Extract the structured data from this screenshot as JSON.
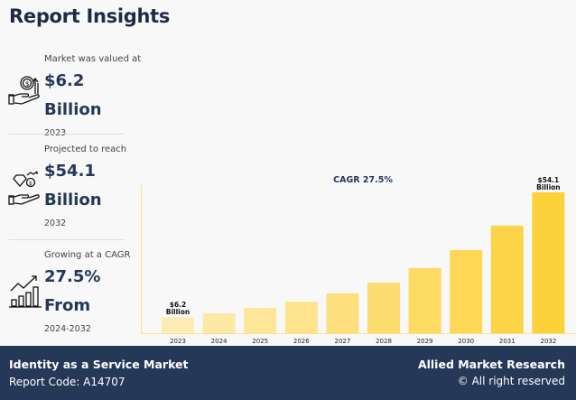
{
  "header": {
    "title": "Report Insights"
  },
  "stats": [
    {
      "label": "Market was valued at",
      "value": "$6.2 Billion",
      "sub": "2023",
      "icon": "hand-money-growth-icon"
    },
    {
      "label": "Projected to reach",
      "value": "$54.1 Billion",
      "sub": "2032",
      "icon": "hand-diamond-coin-icon"
    },
    {
      "label": "Growing at a CAGR",
      "value": "27.5% From",
      "sub": "2024-2032",
      "icon": "bar-chart-growth-icon"
    }
  ],
  "chart_data": {
    "type": "bar",
    "title": "CAGR 27.5%",
    "categories": [
      "2023",
      "2024",
      "2025",
      "2026",
      "2027",
      "2028",
      "2029",
      "2030",
      "2031",
      "2032"
    ],
    "values": [
      6.2,
      7.6,
      9.7,
      12.1,
      15.3,
      19.4,
      25.0,
      31.9,
      41.3,
      54.1
    ],
    "data_labels": {
      "0": [
        "$6.2",
        "Billion"
      ],
      "9": [
        "$54.1",
        "Billion"
      ]
    },
    "ylim": [
      0,
      54.1
    ],
    "grid": false,
    "colors": {
      "start": "#fdecb3",
      "end": "#fdd13a",
      "axis": "#fde08a",
      "title": "#253858"
    }
  },
  "footer": {
    "market": "Identity as a Service Market",
    "code": "Report Code: A14707",
    "brand": "Allied Market Research",
    "rights": "© All right reserved"
  }
}
